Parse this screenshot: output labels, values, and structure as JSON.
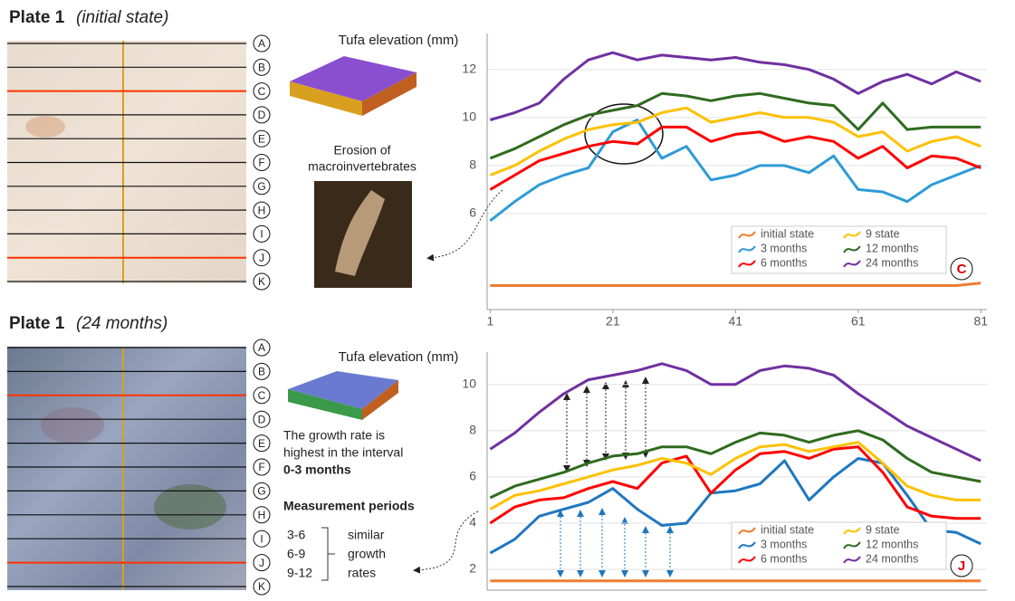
{
  "plates": [
    {
      "title": "Plate 1",
      "subtitle": "(initial state)"
    },
    {
      "title": "Plate 1",
      "subtitle": "(24 months)"
    }
  ],
  "row_labels": [
    "A",
    "B",
    "C",
    "D",
    "E",
    "F",
    "G",
    "H",
    "I",
    "J",
    "K"
  ],
  "annotations": {
    "erosion": [
      "Erosion of",
      "macroinvertebrates"
    ],
    "growth": [
      "The growth rate is",
      "highest in the interval",
      "0-3 months"
    ],
    "periods_title": "Measurement periods",
    "periods": [
      "3-6",
      "6-9",
      "9-12"
    ],
    "similar": [
      "similar",
      "growth",
      "rates"
    ]
  },
  "chart_data": [
    {
      "type": "line",
      "ylabel": "Tufa elevation (mm)",
      "panel_label": "C",
      "x": [
        1,
        5,
        9,
        13,
        17,
        21,
        25,
        29,
        33,
        37,
        41,
        45,
        49,
        53,
        57,
        61,
        65,
        69,
        73,
        77,
        81
      ],
      "xlim": [
        0.5,
        82
      ],
      "xticks": [
        1,
        21,
        41,
        61,
        81
      ],
      "ylim": [
        2,
        13.5
      ],
      "yticks": [
        6,
        8,
        10,
        12
      ],
      "grid": true,
      "legend": "lower right",
      "series": [
        {
          "name": "initial state",
          "color": "#ed7d31",
          "values": [
            3.0,
            3.0,
            3.0,
            3.0,
            3.0,
            3.0,
            3.0,
            3.0,
            3.0,
            3.0,
            3.0,
            3.0,
            3.0,
            3.0,
            3.0,
            3.0,
            3.0,
            3.0,
            3.0,
            3.0,
            3.1
          ]
        },
        {
          "name": "3 months",
          "color": "#2e9bd6",
          "values": [
            5.7,
            6.5,
            7.2,
            7.6,
            7.9,
            9.4,
            9.9,
            8.3,
            8.8,
            7.4,
            7.6,
            8.0,
            8.0,
            7.7,
            8.4,
            7.0,
            6.9,
            6.5,
            7.2,
            7.6,
            8.0
          ]
        },
        {
          "name": "6 months",
          "color": "#ff0000",
          "values": [
            7.0,
            7.6,
            8.2,
            8.5,
            8.8,
            9.0,
            8.9,
            9.6,
            9.6,
            9.0,
            9.3,
            9.4,
            9.0,
            9.2,
            9.0,
            8.3,
            8.8,
            7.9,
            8.4,
            8.3,
            7.9
          ]
        },
        {
          "name": "9 state",
          "color": "#ffc000",
          "values": [
            7.6,
            8.0,
            8.6,
            9.1,
            9.5,
            9.7,
            9.8,
            10.2,
            10.4,
            9.8,
            10.0,
            10.2,
            10.0,
            10.0,
            9.8,
            9.2,
            9.4,
            8.6,
            9.0,
            9.2,
            8.8
          ]
        },
        {
          "name": "12 months",
          "color": "#2e6b1e",
          "values": [
            8.3,
            8.7,
            9.2,
            9.7,
            10.1,
            10.3,
            10.5,
            11.0,
            10.9,
            10.7,
            10.9,
            11.0,
            10.8,
            10.6,
            10.5,
            9.5,
            10.6,
            9.5,
            9.6,
            9.6,
            9.6
          ]
        },
        {
          "name": "24 months",
          "color": "#7030a0",
          "values": [
            9.9,
            10.2,
            10.6,
            11.6,
            12.4,
            12.7,
            12.4,
            12.6,
            12.5,
            12.4,
            12.5,
            12.3,
            12.2,
            12.0,
            11.6,
            11.0,
            11.5,
            11.8,
            11.4,
            11.9,
            11.5
          ]
        }
      ]
    },
    {
      "type": "line",
      "ylabel": "Tufa elevation (mm)",
      "panel_label": "J",
      "x": [
        1,
        5,
        9,
        13,
        17,
        21,
        25,
        29,
        33,
        37,
        41,
        45,
        49,
        53,
        57,
        61,
        65,
        69,
        73,
        77,
        81
      ],
      "xlim": [
        0.5,
        82
      ],
      "ylim": [
        1.1,
        11.4
      ],
      "yticks": [
        2,
        4,
        6,
        8,
        10
      ],
      "grid": true,
      "legend": "lower right",
      "series": [
        {
          "name": "initial state",
          "color": "#ed7d31",
          "values": [
            1.5,
            1.5,
            1.5,
            1.5,
            1.5,
            1.5,
            1.5,
            1.5,
            1.5,
            1.5,
            1.5,
            1.5,
            1.5,
            1.5,
            1.5,
            1.5,
            1.5,
            1.5,
            1.5,
            1.5,
            1.5
          ]
        },
        {
          "name": "3 months",
          "color": "#1f77c0",
          "values": [
            2.7,
            3.3,
            4.3,
            4.6,
            4.9,
            5.5,
            4.6,
            3.9,
            4.0,
            5.3,
            5.4,
            5.7,
            6.7,
            5.0,
            6.0,
            6.8,
            6.6,
            5.2,
            3.7,
            3.6,
            3.1
          ]
        },
        {
          "name": "6 months",
          "color": "#ff0000",
          "values": [
            4.0,
            4.7,
            5.0,
            5.1,
            5.5,
            5.8,
            5.5,
            6.6,
            6.9,
            5.3,
            6.3,
            7.0,
            7.1,
            6.8,
            7.2,
            7.3,
            6.2,
            4.7,
            4.3,
            4.2,
            4.2
          ]
        },
        {
          "name": "9 state",
          "color": "#ffc000",
          "values": [
            4.6,
            5.2,
            5.4,
            5.7,
            6.0,
            6.3,
            6.5,
            6.8,
            6.6,
            6.1,
            6.8,
            7.3,
            7.4,
            7.1,
            7.3,
            7.5,
            6.6,
            5.6,
            5.2,
            5.0,
            5.0
          ]
        },
        {
          "name": "12 months",
          "color": "#2e6b1e",
          "values": [
            5.1,
            5.6,
            5.9,
            6.2,
            6.6,
            6.9,
            7.0,
            7.3,
            7.3,
            7.0,
            7.5,
            7.9,
            7.8,
            7.5,
            7.8,
            8.0,
            7.6,
            6.8,
            6.2,
            6.0,
            5.8
          ]
        },
        {
          "name": "24 months",
          "color": "#7030a0",
          "values": [
            7.2,
            7.9,
            8.8,
            9.6,
            10.2,
            10.4,
            10.6,
            10.9,
            10.6,
            10.0,
            10.0,
            10.6,
            10.8,
            10.7,
            10.4,
            9.6,
            8.9,
            8.2,
            7.7,
            7.2,
            6.7
          ]
        }
      ]
    }
  ]
}
